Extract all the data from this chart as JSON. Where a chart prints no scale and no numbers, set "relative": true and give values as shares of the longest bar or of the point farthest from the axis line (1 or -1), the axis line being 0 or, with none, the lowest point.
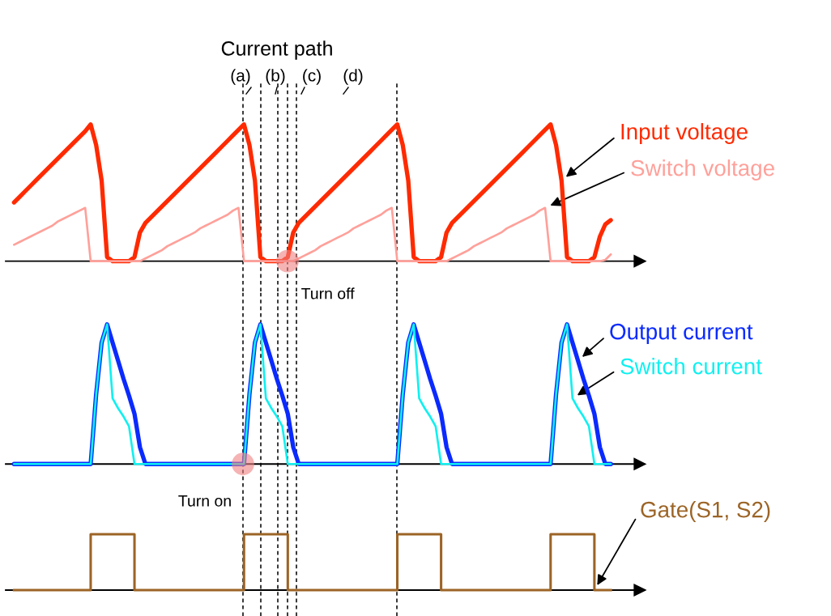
{
  "chart_data": [
    {
      "type": "line",
      "relative": true,
      "categories": [
        null,
        null,
        null,
        null,
        null,
        null,
        null,
        null,
        null,
        null,
        null,
        null,
        null,
        null,
        null,
        null,
        null,
        null,
        null,
        null,
        null,
        null,
        null,
        null,
        null,
        null,
        null,
        null,
        null,
        null,
        null,
        null,
        null,
        null,
        null,
        null,
        null,
        null,
        null,
        null,
        null,
        null,
        null,
        null,
        null,
        null,
        null,
        null,
        null,
        null,
        null,
        null,
        null,
        null,
        null,
        null,
        null,
        null,
        null,
        null,
        null,
        null,
        null,
        null,
        null,
        null,
        null,
        null,
        null,
        null,
        null,
        null,
        null,
        null,
        null,
        null,
        null,
        null,
        null,
        null,
        null,
        null,
        null,
        null,
        null,
        null,
        null,
        null,
        null,
        null,
        null,
        null,
        null,
        null,
        null,
        null,
        null,
        null,
        null,
        null,
        null,
        null,
        null,
        null,
        null,
        null,
        null,
        null,
        null,
        null,
        null,
        null
      ],
      "series": [
        {
          "name": "Input voltage",
          "color": "#ff2a00",
          "values": [
            null,
            null,
            0.43,
            0.47,
            0.51,
            0.55,
            0.59,
            0.63,
            0.67,
            0.71,
            0.75,
            0.79,
            0.83,
            0.87,
            0.91,
            0.95,
            1,
            0.85,
            0.59,
            0.03,
            0,
            0,
            0,
            0,
            0.03,
            0.21,
            0.28,
            0.32,
            0.36,
            0.4,
            0.44,
            0.48,
            0.52,
            0.56,
            0.6,
            0.64,
            0.68,
            0.72,
            0.76,
            0.8,
            0.84,
            0.88,
            0.92,
            0.96,
            1,
            0.85,
            0.59,
            0.03,
            0,
            0,
            0,
            0,
            0.03,
            0.21,
            0.28,
            0.32,
            0.36,
            0.4,
            0.44,
            0.48,
            0.52,
            0.56,
            0.6,
            0.64,
            0.68,
            0.72,
            0.76,
            0.8,
            0.84,
            0.88,
            0.92,
            0.96,
            1,
            0.85,
            0.59,
            0.03,
            0,
            0,
            0,
            0,
            0.03,
            0.21,
            0.28,
            0.32,
            0.36,
            0.4,
            0.44,
            0.48,
            0.52,
            0.56,
            0.6,
            0.64,
            0.68,
            0.72,
            0.76,
            0.8,
            0.84,
            0.88,
            0.92,
            0.96,
            1,
            0.85,
            0.59,
            0.03,
            0,
            0,
            0,
            0,
            0.03,
            0.18,
            0.27,
            0.3
          ]
        },
        {
          "name": "Switch voltage",
          "color": "#ffa09a",
          "values": [
            null,
            null,
            0.12,
            0.14,
            0.16,
            0.18,
            0.2,
            0.22,
            0.24,
            0.26,
            0.29,
            0.31,
            0.33,
            0.35,
            0.37,
            0.39,
            0,
            0,
            0,
            0,
            0,
            0,
            0,
            0,
            0,
            0,
            0.02,
            0.04,
            0.06,
            0.08,
            0.11,
            0.13,
            0.15,
            0.17,
            0.19,
            0.21,
            0.24,
            0.26,
            0.28,
            0.3,
            0.32,
            0.34,
            0.37,
            0.39,
            0,
            0,
            0,
            0,
            0,
            0,
            0,
            0,
            0,
            0,
            0.02,
            0.04,
            0.06,
            0.08,
            0.11,
            0.13,
            0.15,
            0.17,
            0.19,
            0.21,
            0.24,
            0.26,
            0.28,
            0.3,
            0.32,
            0.34,
            0.37,
            0.39,
            0,
            0,
            0,
            0,
            0,
            0,
            0,
            0,
            0,
            0,
            0.02,
            0.04,
            0.06,
            0.08,
            0.11,
            0.13,
            0.15,
            0.17,
            0.19,
            0.21,
            0.24,
            0.26,
            0.28,
            0.3,
            0.32,
            0.34,
            0.37,
            0.39,
            0,
            0,
            0,
            0,
            0,
            0,
            0,
            0,
            0,
            0,
            0.01,
            0.05
          ]
        }
      ],
      "annotations": [
        "Current path",
        "(a)",
        "(b)",
        "(c)",
        "(d)",
        "Turn off"
      ]
    },
    {
      "type": "line",
      "relative": true,
      "categories": [
        null,
        null,
        null,
        null,
        null,
        null,
        null,
        null,
        null,
        null,
        null,
        null,
        null,
        null,
        null,
        null,
        null,
        null,
        null,
        null,
        null,
        null,
        null,
        null,
        null,
        null,
        null,
        null,
        null,
        null,
        null,
        null,
        null,
        null,
        null,
        null,
        null,
        null,
        null,
        null,
        null,
        null,
        null,
        null,
        null,
        null,
        null,
        null,
        null,
        null,
        null,
        null,
        null,
        null,
        null,
        null,
        null,
        null,
        null,
        null,
        null,
        null,
        null,
        null,
        null,
        null,
        null,
        null,
        null,
        null,
        null,
        null,
        null,
        null,
        null,
        null,
        null,
        null,
        null,
        null,
        null,
        null,
        null,
        null,
        null,
        null,
        null,
        null,
        null,
        null,
        null,
        null,
        null,
        null,
        null,
        null,
        null,
        null,
        null,
        null,
        null,
        null,
        null,
        null,
        null,
        null,
        null,
        null,
        null,
        null,
        null,
        null
      ],
      "series": [
        {
          "name": "Output current",
          "color": "#0a2aff",
          "values": [
            null,
            null,
            0,
            0,
            0,
            0,
            0,
            0,
            0,
            0,
            0,
            0,
            0,
            0,
            0,
            0,
            0,
            0.5,
            0.87,
            1,
            0.87,
            0.74,
            0.61,
            0.49,
            0.36,
            0.12,
            0,
            0,
            0,
            0,
            0,
            0,
            0,
            0,
            0,
            0,
            0,
            0,
            0,
            0,
            0,
            0,
            0,
            0,
            0,
            0.5,
            0.87,
            1,
            0.87,
            0.74,
            0.61,
            0.49,
            0.36,
            0.12,
            0,
            0,
            0,
            0,
            0,
            0,
            0,
            0,
            0,
            0,
            0,
            0,
            0,
            0,
            0,
            0,
            0,
            0,
            0,
            0.5,
            0.87,
            1,
            0.87,
            0.74,
            0.61,
            0.49,
            0.36,
            0.12,
            0,
            0,
            0,
            0,
            0,
            0,
            0,
            0,
            0,
            0,
            0,
            0,
            0,
            0,
            0,
            0,
            0,
            0,
            0,
            0.5,
            0.87,
            1,
            0.87,
            0.74,
            0.61,
            0.49,
            0.36,
            0.12,
            0,
            0
          ]
        },
        {
          "name": "Switch current",
          "color": "#10f0f0",
          "values": [
            null,
            null,
            0,
            0,
            0,
            0,
            0,
            0,
            0,
            0,
            0,
            0,
            0,
            0,
            0,
            0,
            0,
            0.5,
            0.87,
            1,
            0.47,
            0.4,
            0.34,
            0.27,
            0,
            0,
            0,
            0,
            0,
            0,
            0,
            0,
            0,
            0,
            0,
            0,
            0,
            0,
            0,
            0,
            0,
            0,
            0,
            0,
            0,
            0.5,
            0.87,
            1,
            0.47,
            0.4,
            0.34,
            0.27,
            0,
            0,
            0,
            0,
            0,
            0,
            0,
            0,
            0,
            0,
            0,
            0,
            0,
            0,
            0,
            0,
            0,
            0,
            0,
            0,
            0,
            0.5,
            0.87,
            1,
            0.47,
            0.4,
            0.34,
            0.27,
            0,
            0,
            0,
            0,
            0,
            0,
            0,
            0,
            0,
            0,
            0,
            0,
            0,
            0,
            0,
            0,
            0,
            0,
            0,
            0,
            0,
            0.5,
            0.87,
            1,
            0.47,
            0.4,
            0.34,
            0.27,
            0,
            0,
            0,
            0
          ]
        }
      ],
      "annotations": [
        "Turn on"
      ]
    },
    {
      "type": "step",
      "relative": true,
      "categories": [
        null,
        null,
        null,
        null,
        null,
        null,
        null,
        null,
        null,
        null,
        null,
        null,
        null,
        null,
        null,
        null,
        null,
        null,
        null,
        null,
        null,
        null,
        null,
        null,
        null,
        null,
        null,
        null,
        null,
        null,
        null,
        null,
        null,
        null,
        null,
        null,
        null,
        null,
        null,
        null,
        null,
        null,
        null,
        null,
        null,
        null,
        null,
        null,
        null,
        null,
        null,
        null,
        null,
        null,
        null,
        null,
        null,
        null,
        null,
        null,
        null,
        null,
        null,
        null,
        null,
        null,
        null,
        null,
        null,
        null,
        null,
        null,
        null,
        null,
        null,
        null,
        null,
        null,
        null,
        null,
        null,
        null,
        null,
        null,
        null,
        null,
        null,
        null,
        null,
        null,
        null,
        null,
        null,
        null,
        null,
        null,
        null,
        null,
        null,
        null,
        null,
        null,
        null,
        null,
        null,
        null,
        null,
        null,
        null,
        null,
        null,
        null
      ],
      "series": [
        {
          "name": "Gate(S1, S2)",
          "color": "#9c6426",
          "values": [
            null,
            null,
            0,
            0,
            0,
            0,
            0,
            0,
            0,
            0,
            0,
            0,
            0,
            0,
            0,
            0,
            1,
            1,
            1,
            1,
            1,
            1,
            1,
            1,
            0,
            0,
            0,
            0,
            0,
            0,
            0,
            0,
            0,
            0,
            0,
            0,
            0,
            0,
            0,
            0,
            0,
            0,
            0,
            0,
            1,
            1,
            1,
            1,
            1,
            1,
            1,
            1,
            0,
            0,
            0,
            0,
            0,
            0,
            0,
            0,
            0,
            0,
            0,
            0,
            0,
            0,
            0,
            0,
            0,
            0,
            0,
            0,
            1,
            1,
            1,
            1,
            1,
            1,
            1,
            1,
            0,
            0,
            0,
            0,
            0,
            0,
            0,
            0,
            0,
            0,
            0,
            0,
            0,
            0,
            0,
            0,
            0,
            0,
            0,
            0,
            1,
            1,
            1,
            1,
            1,
            1,
            1,
            1,
            0,
            0,
            0,
            0
          ]
        }
      ]
    }
  ]
}
